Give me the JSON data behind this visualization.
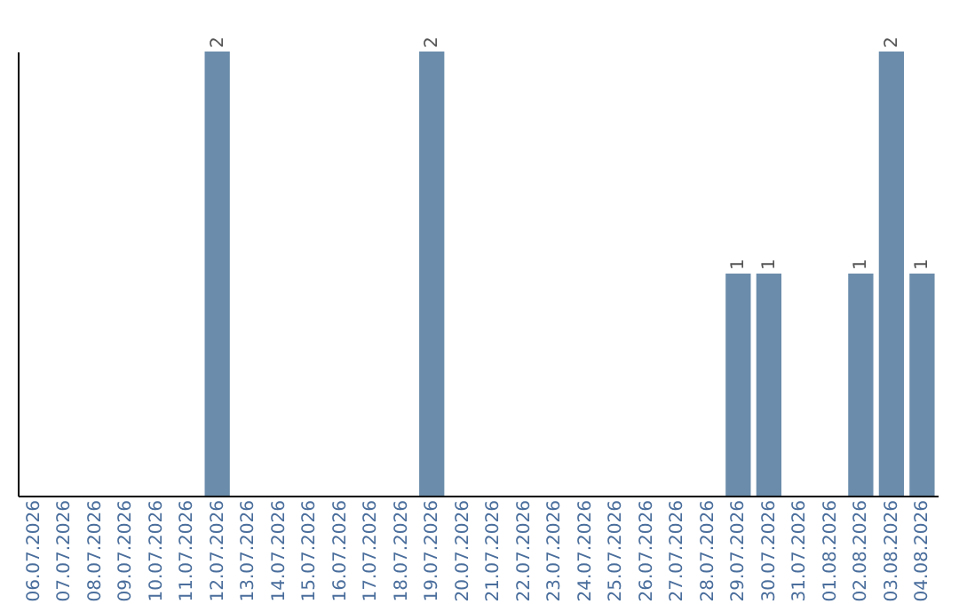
{
  "chart_data": {
    "type": "bar",
    "categories": [
      "06.07.2026",
      "07.07.2026",
      "08.07.2026",
      "09.07.2026",
      "10.07.2026",
      "11.07.2026",
      "12.07.2026",
      "13.07.2026",
      "14.07.2026",
      "15.07.2026",
      "16.07.2026",
      "17.07.2026",
      "18.07.2026",
      "19.07.2026",
      "20.07.2026",
      "21.07.2026",
      "22.07.2026",
      "23.07.2026",
      "24.07.2026",
      "25.07.2026",
      "26.07.2026",
      "27.07.2026",
      "28.07.2026",
      "29.07.2026",
      "30.07.2026",
      "31.07.2026",
      "01.08.2026",
      "02.08.2026",
      "03.08.2026",
      "04.08.2026"
    ],
    "values": [
      0,
      0,
      0,
      0,
      0,
      0,
      2,
      0,
      0,
      0,
      0,
      0,
      0,
      2,
      0,
      0,
      0,
      0,
      0,
      0,
      0,
      0,
      0,
      1,
      1,
      0,
      0,
      1,
      2,
      1
    ],
    "value_labels": [
      null,
      null,
      null,
      null,
      null,
      null,
      "2",
      null,
      null,
      null,
      null,
      null,
      null,
      "2",
      null,
      null,
      null,
      null,
      null,
      null,
      null,
      null,
      null,
      "1",
      "1",
      null,
      null,
      "1",
      "2",
      "1"
    ],
    "color": "#6b8cab",
    "tick_labels": "x",
    "grid": false
  }
}
